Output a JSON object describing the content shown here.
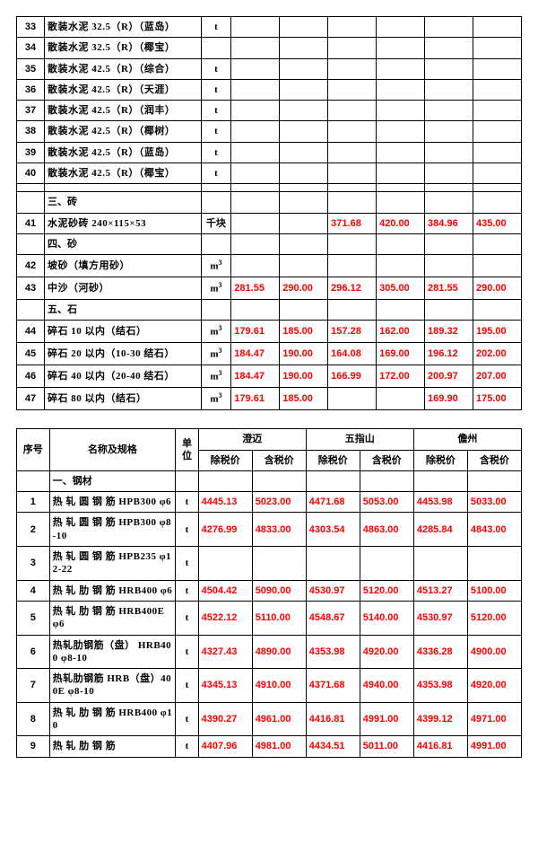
{
  "table1": {
    "col_widths_pct": [
      5.5,
      31,
      6,
      9.58,
      9.58,
      9.58,
      9.58,
      9.58,
      9.58
    ],
    "rows": [
      {
        "idx": "33",
        "name": "散装水泥 32.5（R）（蓝岛）",
        "unit": "t",
        "v": [
          "",
          "",
          "",
          "",
          "",
          ""
        ]
      },
      {
        "idx": "34",
        "name": "散装水泥 32.5（R）（椰宝）",
        "unit": "",
        "v": [
          "",
          "",
          "",
          "",
          "",
          ""
        ]
      },
      {
        "idx": "35",
        "name": "散装水泥 42.5（R）（综合）",
        "unit": "t",
        "v": [
          "",
          "",
          "",
          "",
          "",
          ""
        ]
      },
      {
        "idx": "36",
        "name": "散装水泥 42.5（R）（天涯）",
        "unit": "t",
        "v": [
          "",
          "",
          "",
          "",
          "",
          ""
        ]
      },
      {
        "idx": "37",
        "name": "散装水泥 42.5（R）（润丰）",
        "unit": "t",
        "v": [
          "",
          "",
          "",
          "",
          "",
          ""
        ]
      },
      {
        "idx": "38",
        "name": "散装水泥 42.5（R）（椰树）",
        "unit": "t",
        "v": [
          "",
          "",
          "",
          "",
          "",
          ""
        ]
      },
      {
        "idx": "39",
        "name": "散装水泥 42.5（R）（蓝岛）",
        "unit": "t",
        "v": [
          "",
          "",
          "",
          "",
          "",
          ""
        ]
      },
      {
        "idx": "40",
        "name": "散装水泥 42.5（R）（椰宝）",
        "unit": "t",
        "v": [
          "",
          "",
          "",
          "",
          "",
          ""
        ]
      },
      {
        "section": true,
        "name": ""
      },
      {
        "section": true,
        "name": "三、砖"
      },
      {
        "idx": "41",
        "name": "水泥砂砖 240×115×53",
        "unit": "千块",
        "v": [
          "",
          "",
          "371.68",
          "420.00",
          "384.96",
          "435.00"
        ]
      },
      {
        "section": true,
        "name": "四、砂"
      },
      {
        "idx": "42",
        "name": "坡砂（填方用砂）",
        "unit": "m3",
        "v": [
          "",
          "",
          "",
          "",
          "",
          ""
        ]
      },
      {
        "idx": "43",
        "name": "中沙（河砂）",
        "unit": "m3",
        "v": [
          "281.55",
          "290.00",
          "296.12",
          "305.00",
          "281.55",
          "290.00"
        ]
      },
      {
        "section": true,
        "name": "五、石"
      },
      {
        "idx": "44",
        "name": "碎石 10 以内（结石）",
        "unit": "m3",
        "v": [
          "179.61",
          "185.00",
          "157.28",
          "162.00",
          "189.32",
          "195.00"
        ]
      },
      {
        "idx": "45",
        "name": "碎石 20 以内（10-30 结石）",
        "unit": "m3",
        "v": [
          "184.47",
          "190.00",
          "164.08",
          "169.00",
          "196.12",
          "202.00"
        ]
      },
      {
        "idx": "46",
        "name": "碎石 40 以内（20-40 结石）",
        "unit": "m3",
        "v": [
          "184.47",
          "190.00",
          "166.99",
          "172.00",
          "200.97",
          "207.00"
        ]
      },
      {
        "idx": "47",
        "name": "碎石 80 以内（结石）",
        "unit": "m3",
        "v": [
          "179.61",
          "185.00",
          "",
          "",
          "169.90",
          "175.00"
        ]
      }
    ]
  },
  "table2": {
    "col_widths_pct": [
      6.5,
      25,
      4.5,
      10.67,
      10.67,
      10.67,
      10.67,
      10.67,
      10.67
    ],
    "head": {
      "seq": "序号",
      "name": "名称及规格",
      "unit": "单位",
      "regions": [
        "澄迈",
        "五指山",
        "儋州"
      ],
      "sub": [
        "除税价",
        "含税价"
      ]
    },
    "section_label": "一、钢材",
    "rows": [
      {
        "idx": "1",
        "name": "热 轧 圆 钢 筋 HPB300 φ6",
        "unit": "t",
        "v": [
          "4445.13",
          "5023.00",
          "4471.68",
          "5053.00",
          "4453.98",
          "5033.00"
        ]
      },
      {
        "idx": "2",
        "name": "热 轧 圆 钢 筋 HPB300 φ8-10",
        "unit": "t",
        "v": [
          "4276.99",
          "4833.00",
          "4303.54",
          "4863.00",
          "4285.84",
          "4843.00"
        ]
      },
      {
        "idx": "3",
        "name": "热 轧 圆 钢 筋 HPB235 φ12-22",
        "unit": "t",
        "v": [
          "",
          "",
          "",
          "",
          "",
          ""
        ]
      },
      {
        "idx": "4",
        "name": "热 轧 肋 钢 筋 HRB400 φ6",
        "unit": "t",
        "v": [
          "4504.42",
          "5090.00",
          "4530.97",
          "5120.00",
          "4513.27",
          "5100.00"
        ]
      },
      {
        "idx": "5",
        "name": "热 轧 肋 钢 筋 HRB400E φ6",
        "unit": "t",
        "v": [
          "4522.12",
          "5110.00",
          "4548.67",
          "5140.00",
          "4530.97",
          "5120.00"
        ]
      },
      {
        "idx": "6",
        "name": "热轧肋钢筋（盘） HRB400 φ8-10",
        "unit": "t",
        "v": [
          "4327.43",
          "4890.00",
          "4353.98",
          "4920.00",
          "4336.28",
          "4900.00"
        ]
      },
      {
        "idx": "7",
        "name": "热轧肋钢筋 HRB（盘）400E φ8-10",
        "unit": "t",
        "v": [
          "4345.13",
          "4910.00",
          "4371.68",
          "4940.00",
          "4353.98",
          "4920.00"
        ]
      },
      {
        "idx": "8",
        "name": "热 轧 肋 钢 筋 HRB400 φ10",
        "unit": "t",
        "v": [
          "4390.27",
          "4961.00",
          "4416.81",
          "4991.00",
          "4399.12",
          "4971.00"
        ]
      },
      {
        "idx": "9",
        "name": "热 轧 肋 钢 筋",
        "unit": "t",
        "v": [
          "4407.96",
          "4981.00",
          "4434.51",
          "5011.00",
          "4416.81",
          "4991.00"
        ]
      }
    ]
  },
  "colors": {
    "value": "#ff0000",
    "border": "#000000",
    "text": "#000000",
    "bg": "#ffffff"
  }
}
